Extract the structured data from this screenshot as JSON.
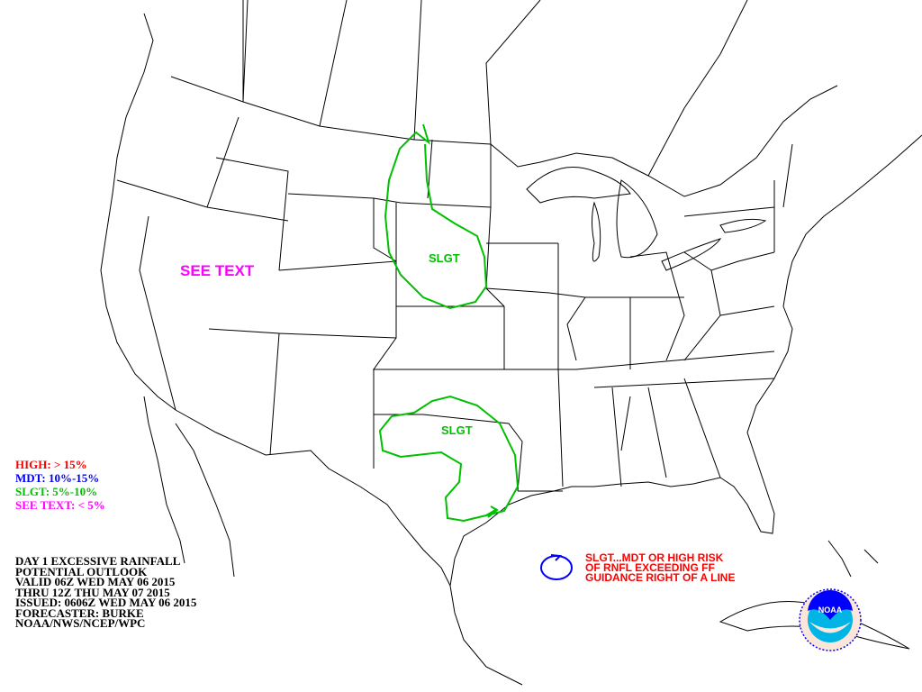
{
  "legend": [
    {
      "label": "HIGH: > 15%",
      "color": "#ff0000"
    },
    {
      "label": "MDT: 10%-15%",
      "color": "#0000ff"
    },
    {
      "label": "SLGT: 5%-10%",
      "color": "#00c000"
    },
    {
      "label": "SEE TEXT: < 5%",
      "color": "#ff00ff"
    }
  ],
  "info_lines": [
    "DAY 1 EXCESSIVE RAINFALL",
    "POTENTIAL OUTLOOK",
    "VALID 06Z WED MAY 06 2015",
    "THRU 12Z THU MAY 07 2015",
    "ISSUED: 0606Z WED MAY 06 2015",
    "FORECASTER: BURKE",
    "NOAA/NWS/NCEP/WPC"
  ],
  "areas": [
    {
      "label": "SLGT",
      "color": "#00c000",
      "region": "northern plains"
    },
    {
      "label": "SLGT",
      "color": "#00c000",
      "region": "texas"
    },
    {
      "label": "SEE TEXT",
      "color": "#ff00ff",
      "region": "great basin"
    }
  ],
  "note": {
    "lines": [
      "SLGT...MDT OR HIGH RISK",
      "OF RNFL EXCEEDING FF",
      "GUIDANCE RIGHT OF A LINE"
    ],
    "color": "#ff0000",
    "icon": "blue-circle-arrow-icon"
  },
  "logo": {
    "text": "NOAA",
    "ring_text": "NATIONAL OCEANIC AND ATMOSPHERIC ADMINISTRATION U.S. DEPARTMENT OF COMMERCE"
  }
}
